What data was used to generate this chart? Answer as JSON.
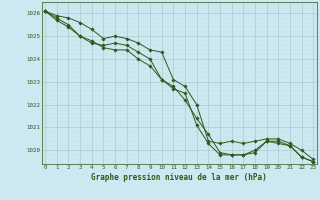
{
  "title": "Graphe pression niveau de la mer (hPa)",
  "x_hours": [
    0,
    1,
    2,
    3,
    4,
    5,
    6,
    7,
    8,
    9,
    10,
    11,
    12,
    13,
    14,
    15,
    16,
    17,
    18,
    19,
    20,
    21,
    22,
    23
  ],
  "series1": [
    1026.1,
    1025.8,
    1025.5,
    1025.0,
    1024.7,
    1024.6,
    1024.7,
    1024.6,
    1024.3,
    1024.0,
    1023.1,
    1022.7,
    1022.5,
    1021.1,
    1020.3,
    1019.8,
    1019.8,
    1019.8,
    1019.9,
    1020.4,
    1020.3,
    1020.2,
    1019.7,
    1019.5
  ],
  "series2": [
    1026.1,
    1025.9,
    1025.8,
    1025.6,
    1025.3,
    1024.9,
    1025.0,
    1024.9,
    1024.7,
    1024.4,
    1024.3,
    1023.1,
    1022.8,
    1022.0,
    1020.4,
    1020.3,
    1020.4,
    1020.3,
    1020.4,
    1020.5,
    1020.5,
    1020.3,
    1020.0,
    1019.6
  ],
  "series3": [
    1026.1,
    1025.7,
    1025.4,
    1025.0,
    1024.8,
    1024.5,
    1024.4,
    1024.4,
    1024.0,
    1023.7,
    1023.1,
    1022.8,
    1022.2,
    1021.4,
    1020.7,
    1019.9,
    1019.8,
    1019.8,
    1020.0,
    1020.4,
    1020.4,
    1020.2,
    1019.7,
    1019.5
  ],
  "line_color": "#2d5a1b",
  "bg_color": "#cce8f0",
  "grid_major_color": "#b0c8d0",
  "grid_minor_color": "#c8dde5",
  "ylim": [
    1019.4,
    1026.5
  ],
  "yticks": [
    1020,
    1021,
    1022,
    1023,
    1024,
    1025,
    1026
  ],
  "markersize": 1.8,
  "linewidth": 0.7
}
